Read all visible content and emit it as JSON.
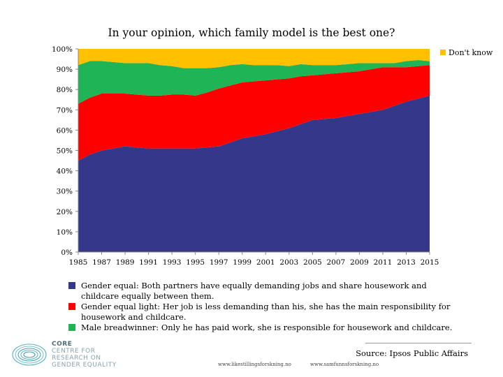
{
  "chart_data": {
    "type": "area",
    "stacked": true,
    "title": "In your opinion, which family model is the best one?",
    "x": [
      1985,
      1986,
      1987,
      1988,
      1989,
      1990,
      1991,
      1992,
      1993,
      1994,
      1995,
      1996,
      1997,
      1998,
      1999,
      2000,
      2001,
      2002,
      2003,
      2004,
      2005,
      2006,
      2007,
      2008,
      2009,
      2010,
      2011,
      2012,
      2013,
      2014,
      2015
    ],
    "xticks": [
      "1985",
      "1987",
      "1989",
      "1991",
      "1993",
      "1995",
      "1997",
      "1999",
      "2001",
      "2003",
      "2005",
      "2007",
      "2009",
      "2011",
      "2013",
      "2015"
    ],
    "ylim": [
      0,
      100
    ],
    "yticks": [
      "0%",
      "10%",
      "20%",
      "30%",
      "40%",
      "50%",
      "60%",
      "70%",
      "80%",
      "90%",
      "100%"
    ],
    "grid": false,
    "series": [
      {
        "name": "Gender equal",
        "color": "#35388a",
        "values": [
          45,
          48,
          50,
          51,
          52,
          51.5,
          51,
          51,
          51,
          51,
          51,
          51.5,
          52,
          54,
          56,
          57,
          58,
          59.5,
          61,
          63,
          65,
          65.5,
          66,
          67,
          68,
          69,
          70,
          72,
          74,
          75.5,
          77
        ]
      },
      {
        "name": "Gender equal light",
        "color": "#ff0000",
        "values": [
          28,
          28,
          28,
          27,
          26,
          26,
          26,
          26,
          26.5,
          26.5,
          26,
          27,
          28.5,
          28,
          27.5,
          27,
          26.5,
          25.5,
          24.5,
          23.5,
          22,
          22,
          22,
          21.5,
          21,
          21,
          21,
          19,
          17,
          16,
          15
        ]
      },
      {
        "name": "Male breadwinner",
        "color": "#1fb556",
        "values": [
          19,
          18,
          16,
          15.5,
          15,
          15.5,
          16,
          15,
          14,
          13,
          13.5,
          12,
          10.5,
          10,
          9,
          8,
          7.5,
          7,
          6,
          6,
          5,
          4.5,
          4,
          4,
          4,
          3,
          2,
          2,
          3,
          3,
          2
        ]
      },
      {
        "name": "Don't know",
        "color": "#ffc000",
        "values": [
          8,
          6,
          6,
          6.5,
          7,
          7,
          7,
          8,
          8.5,
          9.5,
          9.5,
          9.5,
          9,
          8,
          7.5,
          8,
          8,
          8,
          8.5,
          7.5,
          8,
          8,
          8,
          7.5,
          7,
          7,
          7,
          7,
          6,
          5.5,
          6
        ]
      }
    ],
    "legend_inline": "Don't know",
    "legend_below": [
      {
        "name": "Gender equal",
        "color": "#35388a",
        "text": "Gender equal: Both partners have equally demanding jobs and share housework and childcare equally between them."
      },
      {
        "name": "Gender equal light",
        "color": "#ff0000",
        "text": "Gender equal light: Her job is less demanding than his,  she has the main responsibility for housework and childcare."
      },
      {
        "name": "Male breadwinner",
        "color": "#1fb556",
        "text": "Male breadwinner: Only he has paid work, she is responsible for housework and childcare."
      }
    ]
  },
  "logo": {
    "line1": "CORE",
    "line2": "CENTRE FOR",
    "line3": "RESEARCH ON",
    "line4": "GENDER EQUALITY"
  },
  "source": "Source: Ipsos Public Affairs",
  "footer": {
    "url1": "www.likestillingsforskning.no",
    "url2": "www.samfunnsforskning.no"
  }
}
